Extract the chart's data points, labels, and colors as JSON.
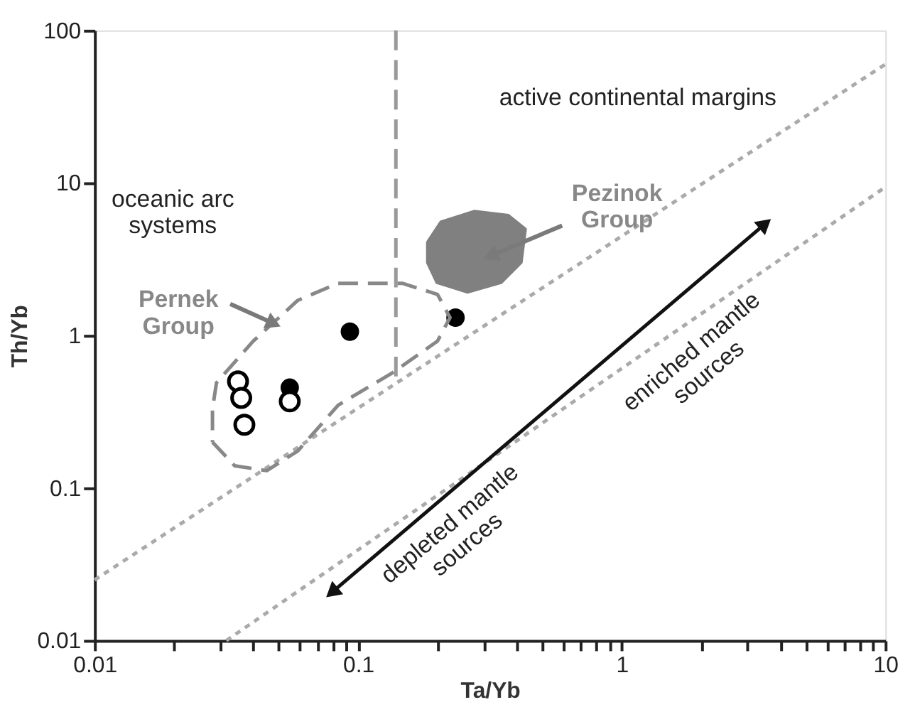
{
  "chart_data": {
    "type": "scatter",
    "xlabel": "Ta/Yb",
    "ylabel": "Th/Yb",
    "log": "xy",
    "grid": false,
    "xlim": [
      0.01,
      10
    ],
    "ylim": [
      0.01,
      100
    ],
    "xticks": [
      0.01,
      {
        "value": 0.02,
        "label": null
      },
      {
        "value": 0.03,
        "label": null
      },
      {
        "value": 0.04,
        "label": null
      },
      {
        "value": 0.05,
        "label": null
      },
      {
        "value": 0.06,
        "label": null
      },
      {
        "value": 0.07,
        "label": null
      },
      {
        "value": 0.08,
        "label": null
      },
      {
        "value": 0.09,
        "label": null
      },
      0.1,
      {
        "value": 0.2,
        "label": null
      },
      {
        "value": 0.3,
        "label": null
      },
      {
        "value": 0.4,
        "label": null
      },
      {
        "value": 0.5,
        "label": null
      },
      {
        "value": 0.6,
        "label": null
      },
      {
        "value": 0.7,
        "label": null
      },
      {
        "value": 0.8,
        "label": null
      },
      {
        "value": 0.9,
        "label": null
      },
      1,
      {
        "value": 2,
        "label": null
      },
      {
        "value": 3,
        "label": null
      },
      {
        "value": 4,
        "label": null
      },
      {
        "value": 5,
        "label": null
      },
      {
        "value": 6,
        "label": null
      },
      {
        "value": 7,
        "label": null
      },
      {
        "value": 8,
        "label": null
      },
      {
        "value": 9,
        "label": null
      },
      10
    ],
    "yticks": [
      0.01,
      0.1,
      1,
      10,
      100
    ],
    "annotations": [
      "active continental margins",
      "oceanic arc\nsystems",
      "Pernek\nGroup",
      "Pezinok\nGroup",
      "depleted mantle\nsources",
      "enriched mantle\nsources"
    ],
    "series": [
      {
        "type": "area",
        "color": "#808080",
        "x": [
          0.182,
          0.205,
          0.276,
          0.372,
          0.434,
          0.418,
          0.35,
          0.26,
          0.198,
          0.182,
          0.182
        ],
        "values": [
          4.1,
          5.6,
          6.6,
          6.2,
          5.0,
          3.0,
          2.2,
          1.9,
          2.2,
          3.0,
          4.1
        ]
      },
      {
        "type": "line",
        "line_style": "dashed",
        "color": "#999999",
        "x": [
          0.139,
          0.139
        ],
        "values": [
          100,
          0.48
        ]
      },
      {
        "type": "line",
        "line_style": "dotted",
        "color": "#aaaaaa",
        "x": [
          0.01,
          10
        ],
        "values": [
          0.025,
          60
        ]
      },
      {
        "type": "line",
        "line_style": "dotted",
        "color": "#aaaaaa",
        "x": [
          0.0316,
          10
        ],
        "values": [
          0.01,
          9.4
        ]
      },
      {
        "marker": "circle",
        "color": "#000000",
        "x": [
          0.093,
          0.234,
          0.055
        ],
        "values": [
          1.06,
          1.31,
          0.455
        ]
      },
      {
        "marker": "circle",
        "color": "#000000",
        "x": [
          0.055,
          0.035,
          0.036,
          0.037
        ],
        "values": [
          0.37,
          0.5,
          0.39,
          0.26
        ]
      }
    ]
  }
}
